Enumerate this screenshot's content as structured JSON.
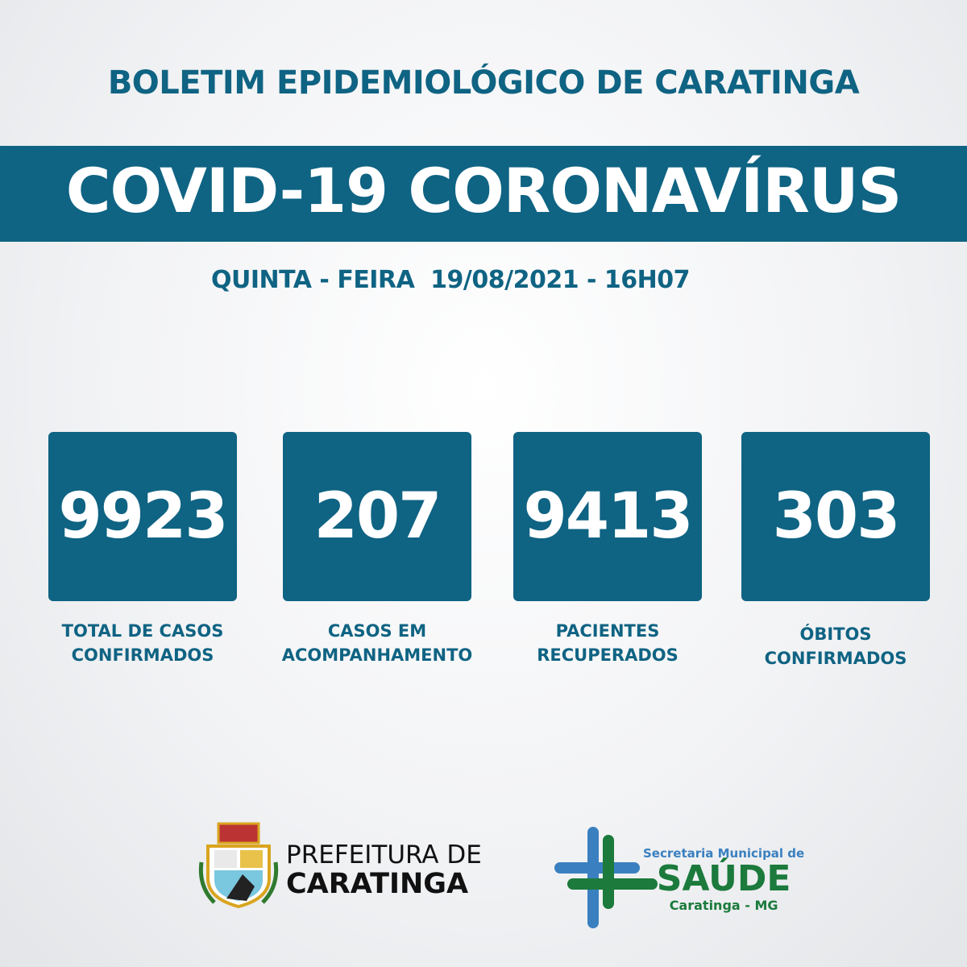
{
  "header": {
    "title": "BOLETIM EPIDEMIOLÓGICO DE CARATINGA",
    "banner": "COVID-19 CORONAVÍRUS",
    "date_line": "QUINTA - FEIRA  19/08/2021 - 16H07"
  },
  "stats": [
    {
      "value": "9923",
      "label_1": "TOTAL DE CASOS",
      "label_2": "CONFIRMADOS"
    },
    {
      "value": "207",
      "label_1": "CASOS EM",
      "label_2": "ACOMPANHAMENTO"
    },
    {
      "value": "9413",
      "label_1": "PACIENTES",
      "label_2": "RECUPERADOS"
    },
    {
      "value": "303",
      "label_1": "ÓBITOS",
      "label_2": "CONFIRMADOS"
    }
  ],
  "footer": {
    "prefeitura_line1": "PREFEITURA DE",
    "prefeitura_line2": "CARATINGA",
    "crest_text": "CARATINGA",
    "saude_line1": "Secretaria Municipal de",
    "saude_line2": "SAÚDE",
    "saude_line3": "Caratinga - MG"
  },
  "colors": {
    "primary": "#0f6383",
    "saude_green": "#1b7a3c",
    "saude_blue": "#3a80c0"
  }
}
